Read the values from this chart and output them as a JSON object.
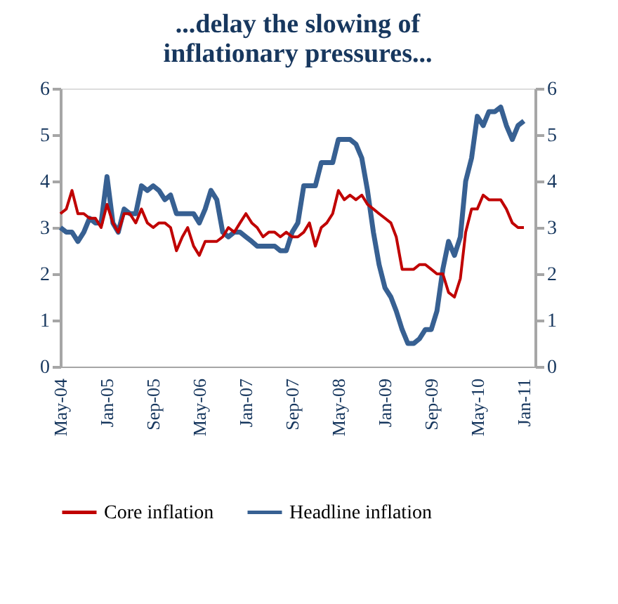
{
  "chart_data": {
    "type": "line",
    "title": "...delay the slowing of inflationary pressures...",
    "x": [
      "2004-05",
      "2004-06",
      "2004-07",
      "2004-08",
      "2004-09",
      "2004-10",
      "2004-11",
      "2004-12",
      "2005-01",
      "2005-02",
      "2005-03",
      "2005-04",
      "2005-05",
      "2005-06",
      "2005-07",
      "2005-08",
      "2005-09",
      "2005-10",
      "2005-11",
      "2005-12",
      "2006-01",
      "2006-02",
      "2006-03",
      "2006-04",
      "2006-05",
      "2006-06",
      "2006-07",
      "2006-08",
      "2006-09",
      "2006-10",
      "2006-11",
      "2006-12",
      "2007-01",
      "2007-02",
      "2007-03",
      "2007-04",
      "2007-05",
      "2007-06",
      "2007-07",
      "2007-08",
      "2007-09",
      "2007-10",
      "2007-11",
      "2007-12",
      "2008-01",
      "2008-02",
      "2008-03",
      "2008-04",
      "2008-05",
      "2008-06",
      "2008-07",
      "2008-08",
      "2008-09",
      "2008-10",
      "2008-11",
      "2008-12",
      "2009-01",
      "2009-02",
      "2009-03",
      "2009-04",
      "2009-05",
      "2009-06",
      "2009-07",
      "2009-08",
      "2009-09",
      "2009-10",
      "2009-11",
      "2009-12",
      "2010-01",
      "2010-02",
      "2010-03",
      "2010-04",
      "2010-05",
      "2010-06",
      "2010-07",
      "2010-08",
      "2010-09",
      "2010-10",
      "2010-11",
      "2010-12",
      "2011-01"
    ],
    "series": [
      {
        "name": "Core inflation",
        "color": "#c00000",
        "values": [
          3.3,
          3.4,
          3.8,
          3.3,
          3.3,
          3.2,
          3.2,
          3.0,
          3.5,
          3.1,
          2.9,
          3.3,
          3.3,
          3.1,
          3.4,
          3.1,
          3.0,
          3.1,
          3.1,
          3.0,
          2.5,
          2.8,
          3.0,
          2.6,
          2.4,
          2.7,
          2.7,
          2.7,
          2.8,
          3.0,
          2.9,
          3.1,
          3.3,
          3.1,
          3.0,
          2.8,
          2.9,
          2.9,
          2.8,
          2.9,
          2.8,
          2.8,
          2.9,
          3.1,
          2.6,
          3.0,
          3.1,
          3.3,
          3.8,
          3.6,
          3.7,
          3.6,
          3.7,
          3.5,
          3.4,
          3.3,
          3.2,
          3.1,
          2.8,
          2.1,
          2.1,
          2.1,
          2.2,
          2.2,
          2.1,
          2.0,
          2.0,
          1.6,
          1.5,
          1.9,
          2.9,
          3.4,
          3.4,
          3.7,
          3.6,
          3.6,
          3.6,
          3.4,
          3.1,
          3.0,
          3.0
        ]
      },
      {
        "name": "Headline inflation",
        "color": "#376092",
        "values": [
          3.0,
          2.9,
          2.9,
          2.7,
          2.9,
          3.2,
          3.1,
          3.1,
          4.1,
          3.1,
          2.9,
          3.4,
          3.3,
          3.3,
          3.9,
          3.8,
          3.9,
          3.8,
          3.6,
          3.7,
          3.3,
          3.3,
          3.3,
          3.3,
          3.1,
          3.4,
          3.8,
          3.6,
          2.9,
          2.8,
          2.9,
          2.9,
          2.8,
          2.7,
          2.6,
          2.6,
          2.6,
          2.6,
          2.5,
          2.5,
          2.9,
          3.1,
          3.9,
          3.9,
          3.9,
          4.4,
          4.4,
          4.4,
          4.9,
          4.9,
          4.9,
          4.8,
          4.5,
          3.8,
          2.9,
          2.2,
          1.7,
          1.5,
          1.2,
          0.8,
          0.5,
          0.5,
          0.6,
          0.8,
          0.8,
          1.2,
          2.1,
          2.7,
          2.4,
          2.8,
          4.0,
          4.5,
          5.4,
          5.2,
          5.5,
          5.5,
          5.6,
          5.2,
          4.9,
          5.2,
          5.3
        ]
      }
    ],
    "xlim": [
      "2004-05",
      "2011-03"
    ],
    "xticks": [
      {
        "value": "2004-05",
        "label": "May-04"
      },
      {
        "value": "2005-01",
        "label": "Jan-05"
      },
      {
        "value": "2005-09",
        "label": "Sep-05"
      },
      {
        "value": "2006-05",
        "label": "May-06"
      },
      {
        "value": "2007-01",
        "label": "Jan-07"
      },
      {
        "value": "2007-09",
        "label": "Sep-07"
      },
      {
        "value": "2008-05",
        "label": "May-08"
      },
      {
        "value": "2009-01",
        "label": "Jan-09"
      },
      {
        "value": "2009-09",
        "label": "Sep-09"
      },
      {
        "value": "2010-05",
        "label": "May-10"
      },
      {
        "value": "2011-01",
        "label": "Jan-11"
      }
    ],
    "ylim": [
      0,
      6
    ],
    "yticks": [
      0,
      1,
      2,
      3,
      4,
      5,
      6
    ],
    "y2lim": [
      0,
      6
    ],
    "y2ticks": [
      0,
      1,
      2,
      3,
      4,
      5,
      6
    ],
    "grid": false,
    "legend": "bottom",
    "line_style": "solid",
    "marker": "none"
  }
}
